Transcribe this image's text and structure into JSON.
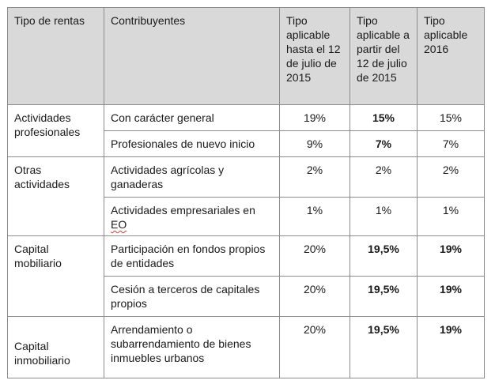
{
  "headers": [
    "Tipo de rentas",
    "Contribuyentes",
    "Tipo aplicable hasta el 12 de julio de 2015",
    "Tipo aplicable a partir del 12 de julio de 2015",
    "Tipo aplicable 2016"
  ],
  "groups": [
    {
      "tipo": "Actividades profesionales",
      "rows": [
        {
          "contribuyente": "Con carácter general",
          "hasta": "19%",
          "desde": "15%",
          "y2016": "15%"
        },
        {
          "contribuyente": "Profesionales de nuevo inicio",
          "hasta": "9%",
          "desde": "7%",
          "y2016": "7%"
        }
      ]
    },
    {
      "tipo": "Otras actividades",
      "rows": [
        {
          "contribuyente": "Actividades agrícolas y ganaderas",
          "hasta": "2%",
          "desde": "2%",
          "y2016": "2%"
        },
        {
          "contribuyente_prefix": "Actividades empresariales en ",
          "contribuyente_marked": "EO",
          "hasta": "1%",
          "desde": "1%",
          "y2016": "1%"
        }
      ]
    },
    {
      "tipo": "Capital mobiliario",
      "rows": [
        {
          "contribuyente": "Participación en fondos propios de entidades",
          "hasta": "20%",
          "desde": "19,5%",
          "y2016": "19%"
        },
        {
          "contribuyente": "Cesión a terceros de capitales propios",
          "hasta": "20%",
          "desde": "19,5%",
          "y2016": "19%"
        }
      ]
    },
    {
      "tipo": "Capital inmobiliario",
      "rows": [
        {
          "contribuyente": "Arrendamiento o subarrendamiento de bienes inmuebles urbanos",
          "hasta": "20%",
          "desde": "19,5%",
          "y2016": "19%"
        }
      ]
    }
  ],
  "colors": {
    "header_bg": "#d9d9d9",
    "border": "#8c8c8c",
    "spellcheck_underline": "#d23b3b"
  }
}
